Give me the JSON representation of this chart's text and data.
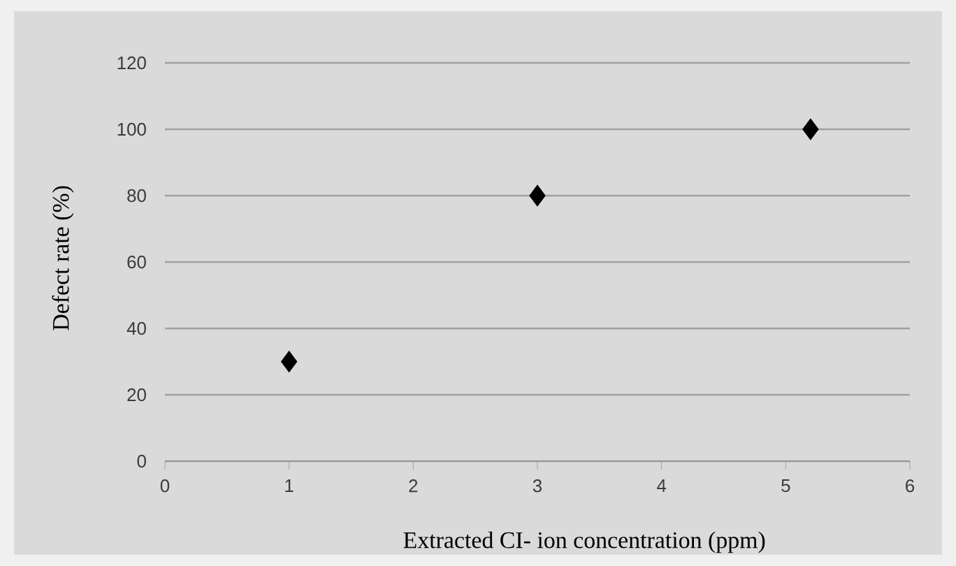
{
  "chart_data": {
    "type": "scatter",
    "xlabel": "Extracted CI- ion concentration (ppm)",
    "ylabel": "Defect rate (%)",
    "x": [
      1,
      3,
      5.2
    ],
    "values": [
      30,
      80,
      100
    ],
    "color": "#000000",
    "marker": "diamond",
    "xlim": [
      0,
      6
    ],
    "ylim": [
      0,
      120
    ],
    "xticks": [
      0,
      1,
      2,
      3,
      4,
      5,
      6
    ],
    "yticks": [
      0,
      20,
      40,
      60,
      80,
      100,
      120
    ],
    "grid": "y"
  }
}
